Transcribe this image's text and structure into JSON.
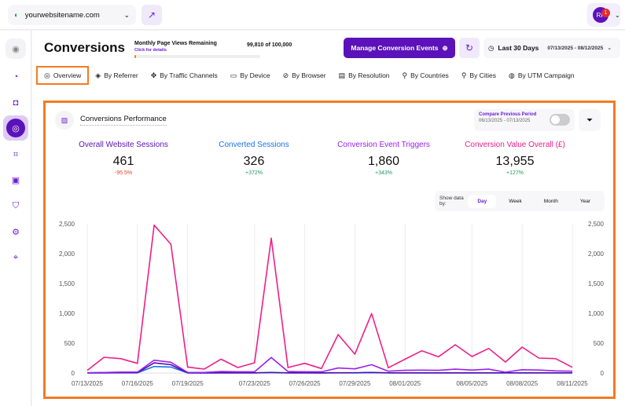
{
  "topbar": {
    "site": "yourwebsitename.com",
    "user_initials": "RF",
    "notifications": "1"
  },
  "sidebar": {
    "items": [
      "collapse",
      "dashboard",
      "ecommerce",
      "conversions",
      "heatmaps",
      "feedback",
      "privacy",
      "settings",
      "location"
    ],
    "active": "conversions"
  },
  "header": {
    "title": "Conversions",
    "quota_label": "Monthly Page Views Remaining",
    "quota_link": "Click for details",
    "quota_value": "99,810 of 100,000",
    "quota_used_percent": 0.19,
    "manage_label": "Manage Conversion Events",
    "range_label": "Last 30 Days",
    "range_dates": "07/13/2025 - 08/12/2025"
  },
  "tabs": [
    {
      "label": "Overview",
      "icon": "overview-icon"
    },
    {
      "label": "By Referrer",
      "icon": "referrer-icon"
    },
    {
      "label": "By Traffic Channels",
      "icon": "channels-icon"
    },
    {
      "label": "By Device",
      "icon": "device-icon"
    },
    {
      "label": "By Browser",
      "icon": "browser-icon"
    },
    {
      "label": "By Resolution",
      "icon": "resolution-icon"
    },
    {
      "label": "By Countries",
      "icon": "pin-icon"
    },
    {
      "label": "By Cities",
      "icon": "pin-icon"
    },
    {
      "label": "By UTM Campaign",
      "icon": "utm-icon"
    }
  ],
  "card": {
    "title": "Conversions Performance",
    "compare_label": "Compare Previous Period",
    "compare_dates": "06/13/2025 - 07/13/2025",
    "compare_on": false,
    "stats": [
      {
        "name": "Overall Website Sessions",
        "value": "461",
        "change": "-95.5%",
        "color": "#5b12b8",
        "change_color": "#e5412d"
      },
      {
        "name": "Converted Sessions",
        "value": "326",
        "change": "+372%",
        "color": "#1a73e8",
        "change_color": "#1e9e5a"
      },
      {
        "name": "Conversion Event Triggers",
        "value": "1,860",
        "change": "+343%",
        "color": "#9b1ff0",
        "change_color": "#1e9e5a"
      },
      {
        "name": "Conversion Value Overall (£)",
        "value": "13,955",
        "change": "+127%",
        "color": "#ee1e8a",
        "change_color": "#1e9e5a"
      }
    ],
    "show_by_label": "Show data by:",
    "show_by_options": [
      "Day",
      "Week",
      "Month",
      "Year"
    ],
    "show_by_selected": "Day"
  },
  "chart_data": {
    "type": "line",
    "x_start": "07/13/2025",
    "x_end": "08/11/2025",
    "xtick_labels": [
      "07/13/2025",
      "07/16/2025",
      "07/19/2025",
      "07/23/2025",
      "07/26/2025",
      "07/29/2025",
      "08/01/2025",
      "08/05/2025",
      "08/08/2025",
      "08/11/2025"
    ],
    "xtick_days": [
      0,
      3,
      6,
      10,
      13,
      16,
      19,
      23,
      26,
      29
    ],
    "ytick_labels": [
      "0",
      "500",
      "1,000",
      "1,500",
      "2,000",
      "2,500"
    ],
    "ylim": [
      0,
      2500
    ],
    "grid": "vertical",
    "series": [
      {
        "name": "Conversion Value Overall (£)",
        "color": "#ee1e8a",
        "values": [
          44,
          263,
          241,
          162,
          2478,
          2158,
          100,
          66,
          232,
          92,
          171,
          2259,
          92,
          162,
          75,
          645,
          316,
          996,
          88,
          232,
          373,
          272,
          474,
          276,
          412,
          184,
          434,
          250,
          241,
          96
        ]
      },
      {
        "name": "Conversion Event Triggers",
        "color": "#9b1ff0",
        "values": [
          5,
          10,
          15,
          15,
          215,
          180,
          10,
          10,
          25,
          20,
          20,
          260,
          25,
          20,
          20,
          85,
          70,
          140,
          30,
          45,
          48,
          45,
          65,
          50,
          65,
          15,
          55,
          50,
          35,
          30
        ]
      },
      {
        "name": "Overall Website Sessions",
        "color": "#4a0ea8",
        "values": [
          2,
          3,
          5,
          5,
          170,
          140,
          3,
          2,
          3,
          3,
          3,
          10,
          3,
          3,
          2,
          5,
          5,
          10,
          3,
          3,
          3,
          3,
          3,
          3,
          3,
          3,
          3,
          3,
          3,
          3
        ]
      },
      {
        "name": "Converted Sessions",
        "color": "#1a73e8",
        "values": [
          1,
          2,
          3,
          3,
          110,
          100,
          2,
          1,
          2,
          2,
          2,
          5,
          2,
          2,
          1,
          3,
          3,
          6,
          2,
          2,
          2,
          2,
          2,
          2,
          2,
          2,
          2,
          2,
          2,
          2
        ]
      }
    ]
  }
}
